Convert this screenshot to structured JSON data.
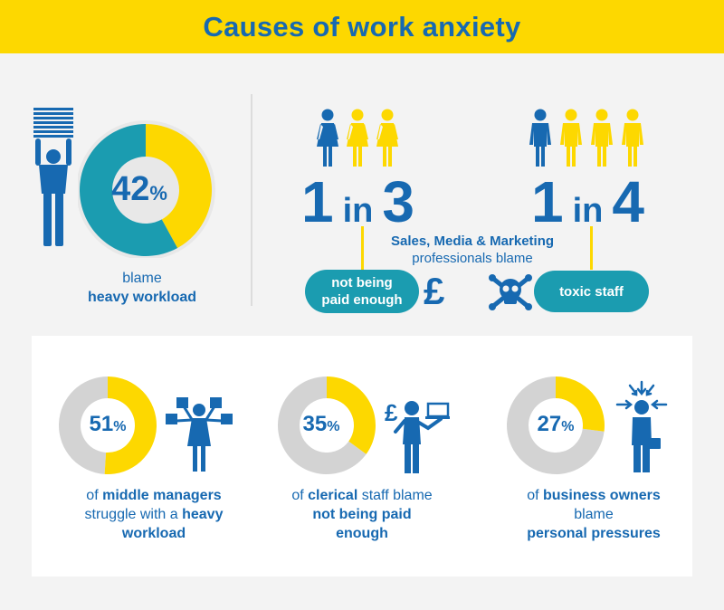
{
  "title": "Causes of work anxiety",
  "colors": {
    "yellow": "#fdd800",
    "blue": "#1769b1",
    "teal": "#1b9cb0",
    "grey": "#d3d3d3"
  },
  "chart_data": [
    {
      "type": "pie",
      "value": 42,
      "unit": "%",
      "label_number": "42",
      "label_unit": "%",
      "caption_line1": "blame",
      "caption_line2": "heavy workload"
    },
    {
      "type": "pie",
      "value": 51,
      "unit": "%",
      "label_number": "51",
      "label_unit": "%",
      "caption_pre": "of ",
      "caption_bold1": "middle managers",
      "caption_line2": "struggle with a ",
      "caption_bold2": "heavy",
      "caption_line3": "workload"
    },
    {
      "type": "pie",
      "value": 35,
      "unit": "%",
      "label_number": "35",
      "label_unit": "%",
      "caption_pre": "of ",
      "caption_bold1": "clerical",
      "caption_post": " staff blame",
      "caption_line2": "not being paid",
      "caption_line3": "enough"
    },
    {
      "type": "pie",
      "value": 27,
      "unit": "%",
      "label_number": "27",
      "label_unit": "%",
      "caption_pre": "of ",
      "caption_bold1": "business owners",
      "caption_line2": "blame",
      "caption_line3": "personal pressures"
    }
  ],
  "ratios": {
    "left": {
      "n1": "1",
      "in": "in",
      "n2": "3",
      "highlighted": 1,
      "total": 3,
      "pill": [
        "not being",
        "paid enough"
      ],
      "symbol": "£"
    },
    "right": {
      "n1": "1",
      "in": "in",
      "n2": "4",
      "highlighted": 1,
      "total": 4,
      "pill": [
        "toxic staff"
      ]
    },
    "center_label_line1": "Sales, Media & Marketing",
    "center_label_line2": "professionals blame"
  },
  "icons": [
    "person-carrying-papers-icon",
    "woman-icon",
    "man-icon",
    "pound-sign-icon",
    "skull-crossbones-icon",
    "multitasking-woman-icon",
    "man-with-laptop-icon",
    "stressed-businessman-icon"
  ]
}
